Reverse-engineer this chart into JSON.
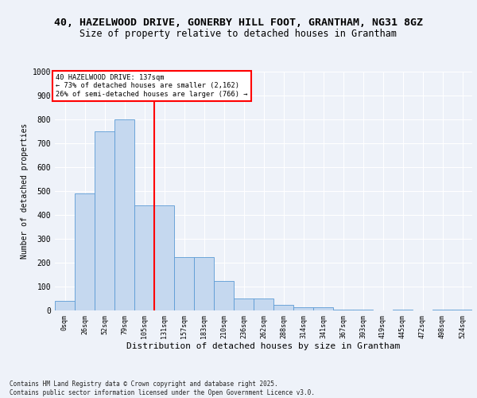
{
  "title1": "40, HAZELWOOD DRIVE, GONERBY HILL FOOT, GRANTHAM, NG31 8GZ",
  "title2": "Size of property relative to detached houses in Grantham",
  "xlabel": "Distribution of detached houses by size in Grantham",
  "ylabel": "Number of detached properties",
  "categories": [
    "0sqm",
    "26sqm",
    "52sqm",
    "79sqm",
    "105sqm",
    "131sqm",
    "157sqm",
    "183sqm",
    "210sqm",
    "236sqm",
    "262sqm",
    "288sqm",
    "314sqm",
    "341sqm",
    "367sqm",
    "393sqm",
    "419sqm",
    "445sqm",
    "472sqm",
    "498sqm",
    "524sqm"
  ],
  "bar_heights": [
    40,
    490,
    750,
    800,
    440,
    440,
    225,
    225,
    125,
    50,
    50,
    25,
    12,
    12,
    5,
    5,
    0,
    5,
    0,
    5,
    5
  ],
  "bar_color": "#c5d8ef",
  "bar_edge_color": "#5b9bd5",
  "vline_x_idx": 5,
  "vline_color": "red",
  "ylim": [
    0,
    1000
  ],
  "yticks": [
    0,
    100,
    200,
    300,
    400,
    500,
    600,
    700,
    800,
    900,
    1000
  ],
  "annotation_line1": "40 HAZELWOOD DRIVE: 137sqm",
  "annotation_line2": "← 73% of detached houses are smaller (2,162)",
  "annotation_line3": "26% of semi-detached houses are larger (766) →",
  "annotation_box_color": "red",
  "annotation_box_facecolor": "white",
  "footer_text": "Contains HM Land Registry data © Crown copyright and database right 2025.\nContains public sector information licensed under the Open Government Licence v3.0.",
  "bg_color": "#eef2f9",
  "plot_bg_color": "#eef2f9",
  "grid_color": "white",
  "title_fontsize": 9.5,
  "subtitle_fontsize": 8.5
}
